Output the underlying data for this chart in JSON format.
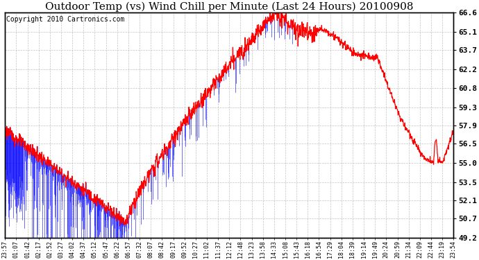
{
  "title": "Outdoor Temp (vs) Wind Chill per Minute (Last 24 Hours) 20100908",
  "copyright": "Copyright 2010 Cartronics.com",
  "background_color": "#ffffff",
  "plot_bg_color": "#ffffff",
  "grid_color": "#aaaaaa",
  "yticks": [
    49.2,
    50.7,
    52.1,
    53.5,
    55.0,
    56.5,
    57.9,
    59.3,
    60.8,
    62.2,
    63.7,
    65.1,
    66.6
  ],
  "xtick_labels": [
    "23:57",
    "01:07",
    "01:42",
    "02:17",
    "02:52",
    "03:27",
    "04:02",
    "04:37",
    "05:12",
    "05:47",
    "06:22",
    "06:57",
    "07:32",
    "08:07",
    "08:42",
    "09:17",
    "09:52",
    "10:27",
    "11:02",
    "11:37",
    "12:12",
    "12:48",
    "13:23",
    "13:58",
    "14:33",
    "15:08",
    "15:43",
    "16:18",
    "16:54",
    "17:29",
    "18:04",
    "18:39",
    "19:14",
    "19:49",
    "20:24",
    "20:59",
    "21:34",
    "22:09",
    "22:44",
    "23:19",
    "23:54"
  ],
  "temp_color": "#ff0000",
  "wind_chill_color": "#0000ff",
  "title_fontsize": 11,
  "copyright_fontsize": 7,
  "ylabel_right_fontsize": 8,
  "xtick_fontsize": 6,
  "ymin": 49.2,
  "ymax": 66.6,
  "n_points": 1440
}
